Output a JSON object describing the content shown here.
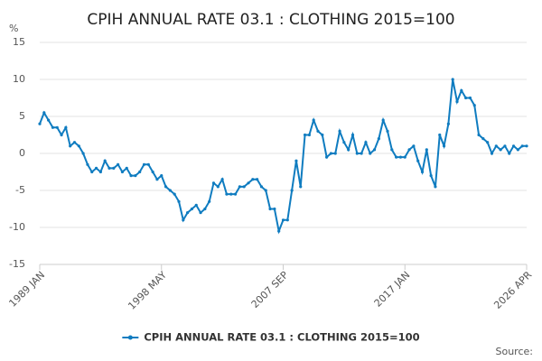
{
  "chart_data": {
    "type": "line",
    "title": "CPIH ANNUAL RATE 03.1 : CLOTHING 2015=100",
    "y_label": "%",
    "source": "Source:",
    "categories": [
      "1989 JAN",
      null,
      null,
      null,
      null,
      null,
      null,
      null,
      null,
      null,
      null,
      null,
      null,
      null,
      null,
      null,
      null,
      null,
      null,
      null,
      null,
      null,
      null,
      null,
      null,
      null,
      null,
      null,
      "1998 MAY",
      null,
      null,
      null,
      null,
      null,
      null,
      null,
      null,
      null,
      null,
      null,
      null,
      null,
      null,
      null,
      null,
      null,
      null,
      null,
      null,
      null,
      null,
      null,
      null,
      null,
      null,
      null,
      "2007 SEP",
      null,
      null,
      null,
      null,
      null,
      null,
      null,
      null,
      null,
      null,
      null,
      null,
      null,
      null,
      null,
      null,
      null,
      null,
      null,
      null,
      null,
      null,
      null,
      null,
      null,
      null,
      null,
      "2017 JAN",
      null,
      null,
      null,
      null,
      null,
      null,
      null,
      null,
      null,
      null,
      null,
      null,
      null,
      null,
      null,
      null,
      null,
      null,
      null,
      null,
      null,
      null,
      null,
      null,
      null,
      null,
      null,
      "2026 APR"
    ],
    "series": [
      {
        "name": "CPIH ANNUAL RATE 03.1 : CLOTHING 2015=100",
        "color": "#0f7cc0",
        "values": [
          4,
          5.5,
          4.5,
          3.5,
          3.5,
          2.5,
          3.5,
          1,
          1.5,
          1,
          0,
          -1.5,
          -2.5,
          -2,
          -2.5,
          -1,
          -2,
          -2,
          -1.5,
          -2.5,
          -2,
          -3,
          -3,
          -2.5,
          -1.5,
          -1.5,
          -2.5,
          -3.5,
          -3,
          -4.5,
          -5,
          -5.5,
          -6.5,
          -9,
          -8,
          -7.5,
          -7,
          -8,
          -7.5,
          -6.5,
          -4,
          -4.5,
          -3.5,
          -5.5,
          -5.5,
          -5.5,
          -4.5,
          -4.5,
          -4,
          -3.5,
          -3.5,
          -4.5,
          -5,
          -7.5,
          -7.5,
          -10.5,
          -9,
          -9,
          -5,
          -1,
          -4.5,
          2.5,
          2.5,
          4.5,
          3,
          2.5,
          -0.5,
          0,
          0,
          3,
          1.5,
          0.5,
          2.5,
          0,
          0,
          1.5,
          0,
          0.5,
          2,
          4.5,
          3,
          0.5,
          -0.5,
          -0.5,
          -0.5,
          0.5,
          1,
          -1,
          -2.5,
          0.5,
          -3,
          -4.5,
          2.5,
          1,
          4,
          10,
          7,
          8.5,
          7.5,
          7.5,
          6.5,
          2.5,
          2,
          1.5,
          0,
          1,
          0.5,
          1,
          0,
          1,
          0.5,
          1,
          1
        ]
      }
    ],
    "ylim": [
      -15,
      15
    ],
    "yticks": [
      -15,
      -10,
      -5,
      0,
      5,
      10,
      15
    ],
    "grid": true,
    "legend": "bottom"
  }
}
